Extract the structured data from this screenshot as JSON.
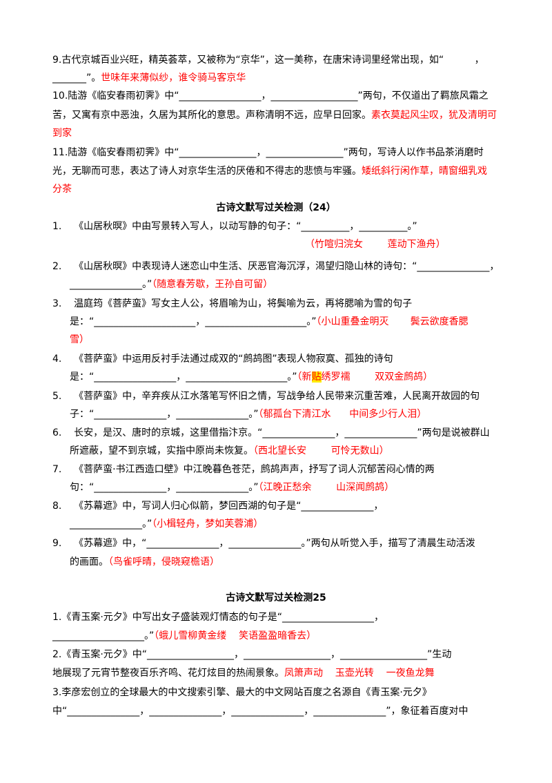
{
  "colors": {
    "answer": "#ff0000",
    "highlight": "#ffeb00"
  },
  "sec1": {
    "q9": {
      "l1": "9.古代京城百业兴旺，精英荟萃，又被称为“京华”，这一美称，在唐宋诗词里经常出现，如“          ，",
      "l2a": "_______”。",
      "l2b": "世味年来薄似纱，谁令骑马客京华"
    },
    "q10": {
      "l1": "10.陆游《临安春雨初霁》中“_________________，__________________”两句，不仅道出了羁旅风霜之",
      "l2a": "苦，又寓有京中恶浊，久居为其所化的意思。声称清明不远，应早日回家。",
      "l2b": "素衣莫起风尘叹，犹及清明可",
      "l3": "到家"
    },
    "q11": {
      "l1": "11.陆游《临安春雨初霁》中“________________，________________”两句，写诗人以作书品茶消磨时",
      "l2a": "光，无聊而可悲，表达了诗人对京华生活的厌倦和不得志的悲愤与牢骚。",
      "l2b": "矮纸斜行闲作草，晴窗细乳戏",
      "l3": "分茶"
    }
  },
  "sec2": {
    "title": "古诗文默写过关检测（24）",
    "q1": {
      "l1": "1.    《山居秋暝》中由写景转入写人，以动写静的句子：“__________，__________。”",
      "ans": "（竹喧归浣女        莲动下渔舟）"
    },
    "q2": {
      "l1": "2.    《山居秋暝》中表现诗人迷恋山中生活、厌恶官海沉浮，渴望归隐山林的诗句：“_______________，",
      "l2a": "_______________。”",
      "ans": "（随意春芳歇，王孙自可留）"
    },
    "q3": {
      "l1": "3.    温庭筠《菩萨蛮》写女主人公，将眉喻为山，将鬓喻为云，再将腮喻为雪的句子",
      "l2a": "是：“_____________________，_____________________。”",
      "ans": "（小山重叠金明灭       鬓云欲度香腮",
      "l3": "雪）"
    },
    "q4": {
      "l1": "4.    《菩萨蛮》中运用反衬手法通过成双的“鹧鸪图”表现人物寂寞、孤独的诗句",
      "l2a": "是：“_________________，_____________________。”",
      "ans_pre": "（新",
      "ans_hl": "贴",
      "ans_post": "绣罗襦        双双金鹧鸪）"
    },
    "q5": {
      "l1": "5.    《菩萨蛮》中，辛弃疾从江水落笔写怀旧之情，写战争给人民带来沉重苦难，人民离开故园的句",
      "l2a": "子：“_______________，_______________。”",
      "ans": "（郁孤台下清江水      中间多少行人泪）"
    },
    "q6": {
      "l1": "6.    长安，是汉、唐时的京城，这里借指汴京。“_______________，_______________”两句是说被群山",
      "l2a": "所遮蔽，望不到京城，实指中原尚未恢复。",
      "ans": "（西北望长安        可怜无数山）"
    },
    "q7": {
      "l1": "7.    《菩萨蛮·书江西造口壁》中江晚暮色苍茫，鹧鸪声声，抒写了词人沉郁苦闷心情的两",
      "l2a": "句：“_______________，_______________。”",
      "ans": "（江晚正愁余        山深闻鹧鸪）"
    },
    "q8": {
      "l1": "8.    《苏幕遮》中，写词人归心似箭，梦回西湖的句子是“_______________，",
      "l2a": "_______________。”",
      "ans": "（小楫轻舟，梦如芙蓉浦）"
    },
    "q9": {
      "l1": "9.    《苏幕遮》中，“_______________，_______________。”两句从听觉入手，描写了清晨生动活泼",
      "l2a": "的画面。",
      "ans": "（鸟雀呼晴，侵晓窥檐语）"
    }
  },
  "sec3": {
    "title": "古诗文默写过关检测25",
    "q1": {
      "l1": "1.《青玉案·元夕》中写出女子盛装观灯情态的句子是“___________________，",
      "l2a": "___________________。”",
      "ans": "（蛾儿雪柳黄金缕    笑语盈盈暗香去）"
    },
    "q2": {
      "l1": "2.《青玉案·元夕》中“__________________，__________________，__________________”生动",
      "l2a": "地展现了元宵节整夜百乐齐鸣、花灯炫目的热闹景象。",
      "ans": "凤箫声动    玉壶光转    一夜鱼龙舞"
    },
    "q3": {
      "l1": "3.李彦宏创立的全球最大的中文搜索引擎、最大的中文网站百度之名源自《青玉案·元夕》",
      "l2": "中“_______________，_______________，_______________，_______________”，象征着百度对中"
    }
  }
}
